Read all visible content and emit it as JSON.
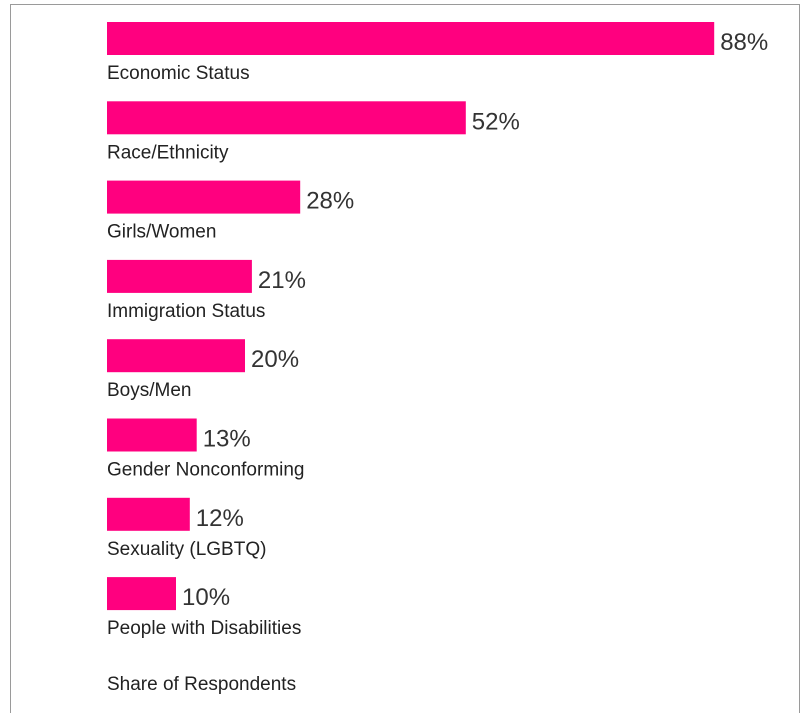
{
  "chart_data": {
    "type": "bar",
    "orientation": "horizontal",
    "categories": [
      "Economic Status",
      "Race/Ethnicity",
      "Girls/Women",
      "Immigration Status",
      "Boys/Men",
      "Gender Nonconforming",
      "Sexuality (LGBTQ)",
      "People with Disabilities"
    ],
    "values": [
      88,
      52,
      28,
      21,
      20,
      13,
      12,
      10
    ],
    "value_labels": [
      "88%",
      "52%",
      "28%",
      "21%",
      "20%",
      "13%",
      "12%",
      "10%"
    ],
    "xlabel": "Share of Respondents",
    "xlim": [
      0,
      100
    ],
    "grid": false,
    "bar_color": "#ff007f"
  }
}
